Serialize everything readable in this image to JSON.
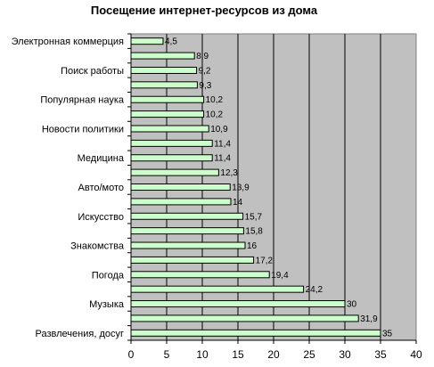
{
  "chart_data": {
    "type": "bar",
    "orientation": "horizontal",
    "title": "Посещение интернет-ресурсов из дома",
    "xlim": [
      0,
      40
    ],
    "x_ticks": [
      "0",
      "5",
      "10",
      "15",
      "20",
      "25",
      "30",
      "35",
      "40"
    ],
    "grid": true,
    "legend": "none",
    "plot_background": "#c0c0c0",
    "bar_color": "#ccffcc",
    "categories": [
      "Электронная коммерция",
      "",
      "Поиск работы",
      "",
      "Популярная наука",
      "",
      "Новости политики",
      "",
      "Медицина",
      "",
      "Авто/мото",
      "",
      "Искусство",
      "",
      "Знакомства",
      "",
      "Погода",
      "",
      "Музыка",
      "",
      "Развлечения, досуг"
    ],
    "values": [
      4.5,
      8.9,
      9.2,
      9.3,
      10.2,
      10.2,
      10.9,
      11.4,
      11.4,
      12.3,
      13.9,
      14,
      15.7,
      15.8,
      16,
      17.2,
      19.4,
      24.2,
      30,
      31.9,
      35
    ],
    "data_labels": [
      "4,5",
      "8,9",
      "9,2",
      "9,3",
      "10,2",
      "10,2",
      "10,9",
      "11,4",
      "11,4",
      "12,3",
      "13,9",
      "14",
      "15,7",
      "15,8",
      "16",
      "17,2",
      "19,4",
      "24,2",
      "30",
      "31,9",
      "35"
    ]
  }
}
